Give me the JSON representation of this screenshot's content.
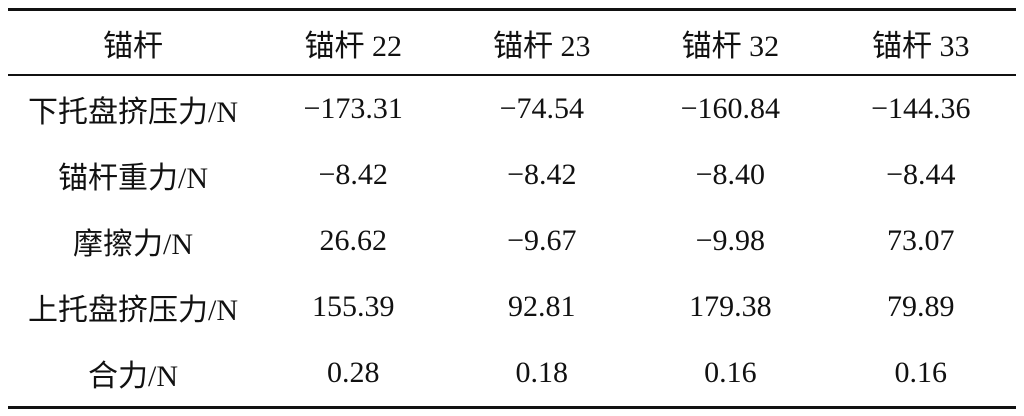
{
  "table": {
    "header": [
      "锚杆",
      "锚杆 22",
      "锚杆 23",
      "锚杆 32",
      "锚杆 33"
    ],
    "rows": [
      [
        "下托盘挤压力/N",
        "−173.31",
        "−74.54",
        "−160.84",
        "−144.36"
      ],
      [
        "锚杆重力/N",
        "−8.42",
        "−8.42",
        "−8.40",
        "−8.44"
      ],
      [
        "摩擦力/N",
        "26.62",
        "−9.67",
        "−9.98",
        "73.07"
      ],
      [
        "上托盘挤压力/N",
        "155.39",
        "92.81",
        "179.38",
        "79.89"
      ],
      [
        "合力/N",
        "0.28",
        "0.18",
        "0.16",
        "0.16"
      ]
    ]
  }
}
